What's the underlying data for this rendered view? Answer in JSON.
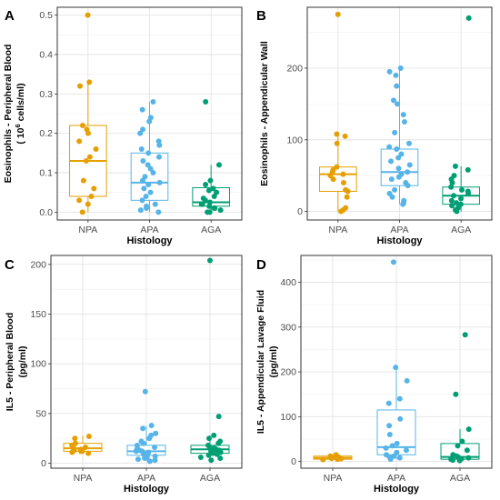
{
  "colors": {
    "NPA": "#E69F00",
    "APA": "#56B4E9",
    "AGA": "#009E73"
  },
  "chart_data": [
    {
      "panel": "A",
      "type": "box",
      "categories": [
        "NPA",
        "APA",
        "AGA"
      ],
      "xlabel": "Histology",
      "ylabel_lines": [
        "Eosinophils - Peripheral Blood",
        "( 10^6 cells/ml)"
      ],
      "ylabel_line1": "Eosinophils - Peripheral Blood",
      "ylabel_line2_pre": "( 10",
      "ylabel_line2_sup": "6",
      "ylabel_line2_post": " cells/ml)",
      "ylim": [
        -0.02,
        0.52
      ],
      "yticks": [
        0.0,
        0.1,
        0.2,
        0.3,
        0.4,
        0.5
      ],
      "ytick_labels": [
        "0.0",
        "0.1",
        "0.2",
        "0.3",
        "0.4",
        "0.5"
      ],
      "boxes": [
        {
          "q1": 0.04,
          "median": 0.13,
          "q3": 0.22,
          "whisker_low": 0.0,
          "whisker_high": 0.33
        },
        {
          "q1": 0.03,
          "median": 0.075,
          "q3": 0.15,
          "whisker_low": 0.0,
          "whisker_high": 0.28
        },
        {
          "q1": 0.015,
          "median": 0.025,
          "q3": 0.062,
          "whisker_low": 0.0,
          "whisker_high": 0.12
        }
      ],
      "points": [
        [
          0.5,
          0.33,
          0.32,
          0.22,
          0.21,
          0.2,
          0.18,
          0.16,
          0.14,
          0.13,
          0.08,
          0.06,
          0.04,
          0.03,
          0.02,
          0.0
        ],
        [
          0.28,
          0.26,
          0.24,
          0.23,
          0.21,
          0.2,
          0.18,
          0.17,
          0.16,
          0.15,
          0.14,
          0.13,
          0.12,
          0.11,
          0.1,
          0.09,
          0.08,
          0.075,
          0.07,
          0.06,
          0.05,
          0.04,
          0.03,
          0.02,
          0.015,
          0.01,
          0.005,
          0.0
        ],
        [
          0.28,
          0.12,
          0.08,
          0.07,
          0.06,
          0.055,
          0.05,
          0.04,
          0.035,
          0.03,
          0.025,
          0.02,
          0.02,
          0.015,
          0.01,
          0.01,
          0.005,
          0.0,
          0.0
        ]
      ]
    },
    {
      "panel": "B",
      "type": "box",
      "categories": [
        "NPA",
        "APA",
        "AGA"
      ],
      "xlabel": "Histology",
      "ylabel_lines": [
        "Eosinophils - Appendicular Wall"
      ],
      "ylim": [
        -12,
        285
      ],
      "yticks": [
        0,
        100,
        200
      ],
      "ytick_labels": [
        "0",
        "100",
        "200"
      ],
      "boxes": [
        {
          "q1": 28,
          "median": 52,
          "q3": 62,
          "whisker_low": 0,
          "whisker_high": 108
        },
        {
          "q1": 36,
          "median": 55,
          "q3": 87,
          "whisker_low": 10,
          "whisker_high": 200
        },
        {
          "q1": 10,
          "median": 22,
          "q3": 34,
          "whisker_low": 0,
          "whisker_high": 63
        }
      ],
      "points": [
        [
          275,
          108,
          105,
          95,
          62,
          58,
          55,
          52,
          50,
          45,
          40,
          30,
          28,
          20,
          5,
          2,
          0
        ],
        [
          200,
          195,
          190,
          175,
          155,
          150,
          135,
          125,
          110,
          95,
          90,
          87,
          80,
          75,
          70,
          65,
          60,
          55,
          52,
          48,
          45,
          40,
          36,
          30,
          25,
          20,
          15,
          12,
          10
        ],
        [
          270,
          63,
          58,
          50,
          45,
          40,
          34,
          30,
          28,
          25,
          22,
          18,
          15,
          12,
          10,
          8,
          5,
          2,
          0
        ]
      ]
    },
    {
      "panel": "C",
      "type": "box",
      "categories": [
        "NPA",
        "APA",
        "AGA"
      ],
      "xlabel": "Histology",
      "ylabel_lines": [
        "IL5 - Peripheral Blood",
        "(pg/ml)"
      ],
      "ylim": [
        -5,
        209
      ],
      "yticks": [
        0,
        50,
        100,
        150,
        200
      ],
      "ytick_labels": [
        "0",
        "50",
        "100",
        "150",
        "200"
      ],
      "boxes": [
        {
          "q1": 12,
          "median": 15,
          "q3": 20,
          "whisker_low": 10,
          "whisker_high": 28
        },
        {
          "q1": 8,
          "median": 12,
          "q3": 18,
          "whisker_low": 2,
          "whisker_high": 38
        },
        {
          "q1": 10,
          "median": 14,
          "q3": 18,
          "whisker_low": 3,
          "whisker_high": 28
        }
      ],
      "points": [
        [
          27,
          25,
          20,
          18,
          16,
          15,
          14,
          13,
          12,
          12,
          11,
          10
        ],
        [
          72,
          38,
          35,
          30,
          28,
          25,
          22,
          20,
          18,
          16,
          15,
          14,
          13,
          12,
          12,
          11,
          10,
          9,
          8,
          7,
          6,
          5,
          4,
          3,
          2
        ],
        [
          204,
          47,
          28,
          25,
          22,
          20,
          18,
          16,
          15,
          14,
          13,
          12,
          11,
          10,
          9,
          8,
          6,
          5,
          3
        ]
      ]
    },
    {
      "panel": "D",
      "type": "box",
      "categories": [
        "NPA",
        "APA",
        "AGA"
      ],
      "xlabel": "Histology",
      "ylabel_lines": [
        "IL5 - Appendicular Lavage Fluid",
        "(pg/ml)"
      ],
      "ylim": [
        -15,
        460
      ],
      "yticks": [
        0,
        100,
        200,
        300,
        400
      ],
      "ytick_labels": [
        "0",
        "100",
        "200",
        "300",
        "400"
      ],
      "boxes": [
        {
          "q1": 5,
          "median": 8,
          "q3": 12,
          "whisker_low": 3,
          "whisker_high": 15
        },
        {
          "q1": 15,
          "median": 32,
          "q3": 115,
          "whisker_low": 5,
          "whisker_high": 210
        },
        {
          "q1": 5,
          "median": 10,
          "q3": 40,
          "whisker_low": 2,
          "whisker_high": 72
        }
      ],
      "points": [
        [
          15,
          12,
          10,
          9,
          8,
          7,
          6,
          5,
          4
        ],
        [
          445,
          210,
          180,
          140,
          130,
          95,
          80,
          60,
          40,
          35,
          30,
          25,
          20,
          15,
          12,
          10,
          8,
          5
        ],
        [
          283,
          150,
          72,
          45,
          35,
          25,
          15,
          12,
          10,
          8,
          6,
          5,
          3,
          2
        ]
      ]
    }
  ]
}
